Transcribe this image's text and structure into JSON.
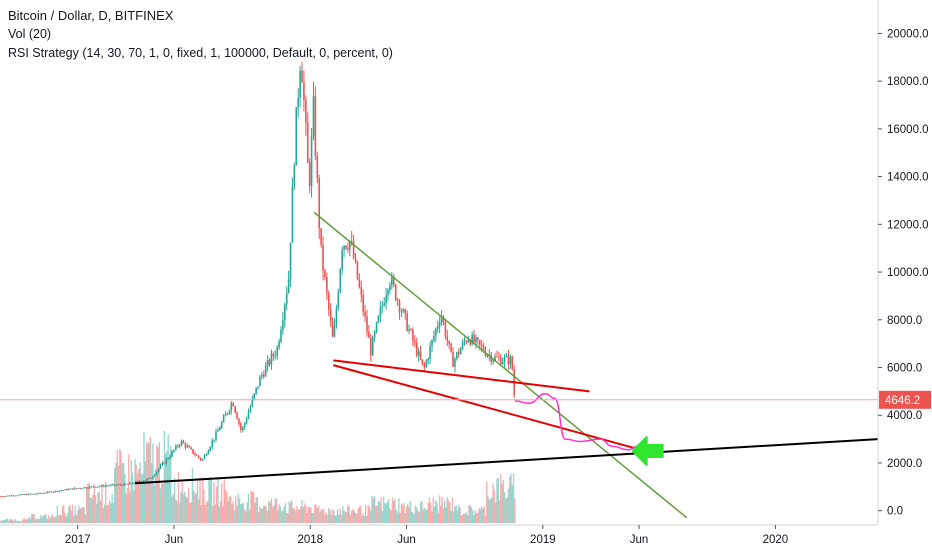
{
  "legend": {
    "title": "Bitcoin / Dollar, D, BITFINEX",
    "volume": "Vol (20)",
    "strategy": "RSI Strategy (14, 30, 70, 1, 0, fixed, 1, 100000, Default, 0, percent, 0)"
  },
  "colors": {
    "bull": "#26a69a",
    "bear": "#ef5350",
    "downtrend_line": "#5f9e3a",
    "red_lines": "#e60000",
    "support_line": "#000000",
    "projection": "#ff33cc",
    "arrow": "#2ee62e",
    "price_tag": "#ef5350",
    "axis_text": "#131722"
  },
  "chart_data": {
    "type": "candlestick",
    "instrument": "Bitcoin / Dollar",
    "timeframe": "D",
    "exchange": "BITFINEX",
    "y_ticks": [
      "0.0",
      "2000.0",
      "4000.0",
      "6000.0",
      "8000.0",
      "10000.0",
      "12000.0",
      "14000.0",
      "16000.0",
      "18000.0",
      "20000.0"
    ],
    "y_tick_values": [
      0,
      2000,
      4000,
      6000,
      8000,
      10000,
      12000,
      14000,
      16000,
      18000,
      20000
    ],
    "ylim": [
      -600,
      21400
    ],
    "x_ticks": [
      "2017",
      "Jun",
      "2018",
      "Jun",
      "2019",
      "Jun",
      "2020"
    ],
    "x_tick_dates": [
      "2017-01-01",
      "2017-06-01",
      "2018-01-01",
      "2018-06-01",
      "2019-01-01",
      "2019-06-01",
      "2020-01-01"
    ],
    "xlim": [
      "2016-09-01",
      "2020-06-10"
    ],
    "last_price": "4646.2",
    "last_price_value": 4646.2,
    "price_path": [
      [
        "2016-09-01",
        600
      ],
      [
        "2016-11-01",
        720
      ],
      [
        "2017-01-01",
        950
      ],
      [
        "2017-02-15",
        1050
      ],
      [
        "2017-03-20",
        1100
      ],
      [
        "2017-04-25",
        1350
      ],
      [
        "2017-05-25",
        2300
      ],
      [
        "2017-06-12",
        2900
      ],
      [
        "2017-07-15",
        2100
      ],
      [
        "2017-08-10",
        3400
      ],
      [
        "2017-09-01",
        4600
      ],
      [
        "2017-09-15",
        3300
      ],
      [
        "2017-10-15",
        5600
      ],
      [
        "2017-11-10",
        6800
      ],
      [
        "2017-11-28",
        9800
      ],
      [
        "2017-12-07",
        15000
      ],
      [
        "2017-12-17",
        19400
      ],
      [
        "2017-12-30",
        13500
      ],
      [
        "2018-01-06",
        16800
      ],
      [
        "2018-01-17",
        11000
      ],
      [
        "2018-02-06",
        7000
      ],
      [
        "2018-02-20",
        11200
      ],
      [
        "2018-03-05",
        11300
      ],
      [
        "2018-04-06",
        6700
      ],
      [
        "2018-05-05",
        9800
      ],
      [
        "2018-06-28",
        5900
      ],
      [
        "2018-07-25",
        8300
      ],
      [
        "2018-08-12",
        6200
      ],
      [
        "2018-09-05",
        7300
      ],
      [
        "2018-10-15",
        6400
      ],
      [
        "2018-11-13",
        6300
      ],
      [
        "2018-11-18",
        4500
      ]
    ],
    "volume_bars": [
      0.05,
      0.1,
      0.2,
      0.45,
      0.8,
      1.0,
      0.6,
      0.5,
      0.35,
      0.3,
      0.25,
      0.2,
      0.2,
      0.3,
      0.25,
      0.3,
      0.2,
      0.55
    ],
    "drawings": [
      {
        "type": "trend_line",
        "role": "downtrend",
        "from": [
          "2018-01-07",
          12500
        ],
        "to": [
          "2019-08-15",
          -300
        ]
      },
      {
        "type": "trend_line",
        "role": "red_upper",
        "from": [
          "2018-02-06",
          6300
        ],
        "to": [
          "2019-03-15",
          5000
        ]
      },
      {
        "type": "trend_line",
        "role": "red_lower",
        "from": [
          "2018-02-06",
          6100
        ],
        "to": [
          "2019-05-28",
          2600
        ]
      },
      {
        "type": "trend_line",
        "role": "support",
        "from": [
          "2017-04-01",
          1150
        ],
        "to": [
          "2020-06-10",
          3000
        ]
      },
      {
        "type": "projection_path",
        "points": [
          [
            "2018-11-18",
            4600
          ],
          [
            "2018-12-10",
            4500
          ],
          [
            "2019-01-05",
            4900
          ],
          [
            "2019-01-20",
            4700
          ],
          [
            "2019-02-05",
            3000
          ],
          [
            "2019-03-01",
            2900
          ],
          [
            "2019-04-01",
            3000
          ],
          [
            "2019-04-20",
            2700
          ],
          [
            "2019-05-15",
            2550
          ],
          [
            "2019-05-30",
            2700
          ]
        ]
      },
      {
        "type": "arrow",
        "direction": "left",
        "tip": [
          "2019-05-22",
          2500
        ]
      }
    ]
  }
}
